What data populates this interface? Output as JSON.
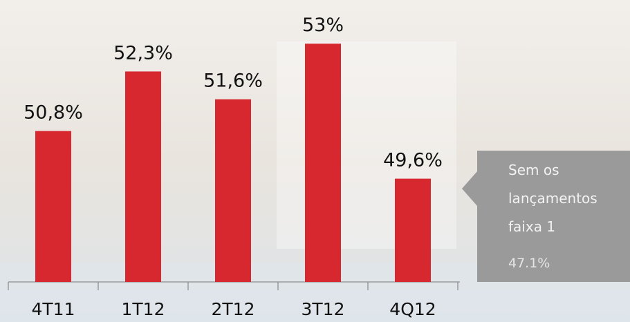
{
  "chart_data": {
    "type": "bar",
    "categories": [
      "4T11",
      "1T12",
      "2T12",
      "3T12",
      "4Q12"
    ],
    "values": [
      50.8,
      52.3,
      51.6,
      53,
      49.6
    ],
    "value_labels": [
      "50,8%",
      "52,3%",
      "51,6%",
      "53%",
      "49,6%"
    ],
    "color": "#d7282f",
    "ylim": [
      47,
      54.1
    ],
    "callout": {
      "lines": [
        "Sem os",
        "lançamentos",
        "faixa 1"
      ],
      "value": 47.1,
      "value_label": "47.1%"
    }
  }
}
